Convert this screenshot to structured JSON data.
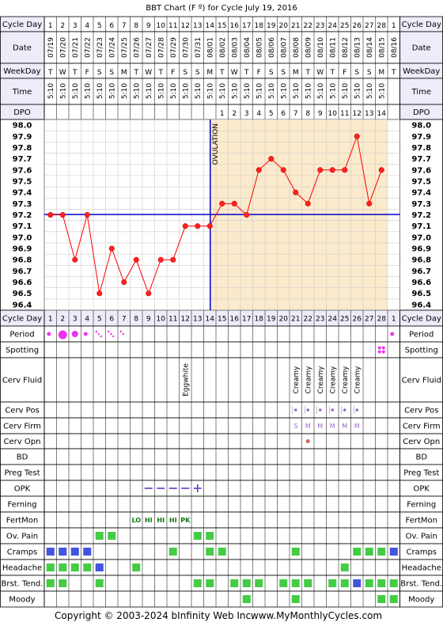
{
  "title": "BBT Chart (F º) for Cycle July 19, 2016",
  "footer": {
    "copyright": "Copyright © 2003-2024 bInfinity Web Inc.",
    "site": "www.MyMonthlyCycles.com"
  },
  "row_labels": {
    "cycle_day": "Cycle Day",
    "date": "Date",
    "weekday": "WeekDay",
    "time": "Time",
    "dpo": "DPO",
    "period": "Period",
    "spotting": "Spotting",
    "cerv_fluid": "Cerv Fluid",
    "cerv_pos": "Cerv Pos",
    "cerv_firm": "Cerv Firm",
    "cerv_opn": "Cerv Opn",
    "bd": "BD",
    "preg_test": "Preg Test",
    "opk": "OPK",
    "ferning": "Ferning",
    "fertmon": "FertMon",
    "ov_pain": "Ov. Pain",
    "cramps": "Cramps",
    "headache": "Headache",
    "brst_tend": "Brst. Tend.",
    "moody": "Moody"
  },
  "cycle_days": [
    "1",
    "2",
    "3",
    "4",
    "5",
    "6",
    "7",
    "8",
    "9",
    "10",
    "11",
    "12",
    "13",
    "14",
    "15",
    "16",
    "17",
    "18",
    "19",
    "20",
    "21",
    "22",
    "23",
    "24",
    "25",
    "26",
    "27",
    "28",
    "1"
  ],
  "dates": [
    "07/19",
    "07/20",
    "07/21",
    "07/22",
    "07/23",
    "07/24",
    "07/25",
    "07/26",
    "07/27",
    "07/28",
    "07/29",
    "07/30",
    "07/31",
    "08/01",
    "08/02",
    "08/03",
    "08/04",
    "08/05",
    "08/06",
    "08/07",
    "08/08",
    "08/09",
    "08/10",
    "08/11",
    "08/12",
    "08/13",
    "08/14",
    "08/15",
    "08/16"
  ],
  "weekdays": [
    "T",
    "W",
    "T",
    "F",
    "S",
    "S",
    "M",
    "T",
    "W",
    "T",
    "F",
    "S",
    "S",
    "M",
    "T",
    "W",
    "T",
    "F",
    "S",
    "S",
    "M",
    "T",
    "W",
    "T",
    "F",
    "S",
    "S",
    "M",
    "T"
  ],
  "times": [
    "5:10",
    "5:10",
    "5:10",
    "5:10",
    "5:10",
    "5:10",
    "5:10",
    "5:10",
    "5:10",
    "5:10",
    "5:10",
    "5:10",
    "5:10",
    "5:10",
    "5:10",
    "5:10",
    "5:10",
    "5:10",
    "5:10",
    "5:10",
    "5:10",
    "5:10",
    "5:10",
    "5:10",
    "5:10",
    "5:10",
    "5:10",
    "5:10",
    ""
  ],
  "dpo": [
    "",
    "",
    "",
    "",
    "",
    "",
    "",
    "",
    "",
    "",
    "",
    "",
    "",
    "",
    "1",
    "2",
    "3",
    "4",
    "5",
    "6",
    "7",
    "8",
    "9",
    "10",
    "11",
    "12",
    "13",
    "14",
    ""
  ],
  "ovulation_label": "OVULATION",
  "chart_data": {
    "type": "line",
    "x": [
      1,
      2,
      3,
      4,
      5,
      6,
      7,
      8,
      9,
      10,
      11,
      12,
      13,
      14,
      15,
      16,
      17,
      18,
      19,
      20,
      21,
      22,
      23,
      24,
      25,
      26,
      27,
      28
    ],
    "values": [
      97.2,
      97.2,
      96.8,
      97.2,
      96.5,
      96.9,
      96.6,
      96.8,
      96.5,
      96.8,
      96.8,
      97.1,
      97.1,
      97.1,
      97.3,
      97.3,
      97.2,
      97.6,
      97.7,
      97.6,
      97.4,
      97.3,
      97.6,
      97.6,
      97.6,
      97.9,
      97.3,
      97.6
    ],
    "y_ticks": [
      "98.0",
      "97.9",
      "97.8",
      "97.7",
      "97.6",
      "97.5",
      "97.4",
      "97.3",
      "97.2",
      "97.1",
      "97.0",
      "96.9",
      "96.8",
      "96.7",
      "96.6",
      "96.5",
      "96.4"
    ],
    "ylim": [
      96.4,
      98.0
    ],
    "coverline": 97.2,
    "ovulation_day": 14,
    "colors": {
      "line": "#ff0000",
      "coverline": "#0000cc",
      "ovulation": "#0000cc",
      "post_ovulation_bg": "#fbeacb",
      "grid": "#cccccc"
    }
  },
  "period": [
    "dot-small",
    "dot-large",
    "dot-medium",
    "dot-small",
    "spot-3",
    "spot-3",
    "spot-2",
    "",
    "",
    "",
    "",
    "",
    "",
    "",
    "",
    "",
    "",
    "",
    "",
    "",
    "",
    "",
    "",
    "",
    "",
    "",
    "",
    "",
    "dot-small"
  ],
  "spotting": [
    "",
    "",
    "",
    "",
    "",
    "",
    "",
    "",
    "",
    "",
    "",
    "",
    "",
    "",
    "",
    "",
    "",
    "",
    "",
    "",
    "",
    "",
    "",
    "",
    "",
    "",
    "",
    "spot-4",
    ""
  ],
  "cerv_fluid": [
    "",
    "",
    "",
    "",
    "",
    "",
    "",
    "",
    "",
    "",
    "",
    "Eggwhite",
    "",
    "",
    "",
    "",
    "",
    "",
    "",
    "",
    "Creamy",
    "Creamy",
    "Creamy",
    "Creamy",
    "Creamy",
    "Creamy",
    "",
    "",
    ""
  ],
  "cerv_pos": [
    "",
    "",
    "",
    "",
    "",
    "",
    "",
    "",
    "",
    "",
    "",
    "",
    "",
    "",
    "",
    "",
    "",
    "",
    "",
    "",
    "•",
    "•",
    "•",
    "•",
    "•",
    "•",
    "",
    "",
    ""
  ],
  "cerv_firm": [
    "",
    "",
    "",
    "",
    "",
    "",
    "",
    "",
    "",
    "",
    "",
    "",
    "",
    "",
    "",
    "",
    "",
    "",
    "",
    "",
    "S",
    "M",
    "M",
    "M",
    "M",
    "M",
    "",
    "",
    ""
  ],
  "cerv_opn": [
    "",
    "",
    "",
    "",
    "",
    "",
    "",
    "",
    "",
    "",
    "",
    "",
    "",
    "",
    "",
    "",
    "",
    "",
    "",
    "",
    "",
    "•",
    "",
    "",
    "",
    "",
    "",
    "",
    ""
  ],
  "opk": [
    "",
    "",
    "",
    "",
    "",
    "",
    "",
    "",
    "–",
    "–",
    "–",
    "–",
    "+",
    "",
    "",
    "",
    "",
    "",
    "",
    "",
    "",
    "",
    "",
    "",
    "",
    "",
    "",
    "",
    ""
  ],
  "fertmon": [
    "",
    "",
    "",
    "",
    "",
    "",
    "",
    "LO",
    "HI",
    "HI",
    "HI",
    "PK",
    "",
    "",
    "",
    "",
    "",
    "",
    "",
    "",
    "",
    "",
    "",
    "",
    "",
    "",
    "",
    "",
    ""
  ],
  "ov_pain": [
    "",
    "",
    "",
    "",
    "g",
    "g",
    "",
    "",
    "",
    "",
    "",
    "",
    "g",
    "g",
    "",
    "",
    "",
    "",
    "",
    "",
    "",
    "",
    "",
    "",
    "",
    "",
    "",
    "",
    ""
  ],
  "cramps": [
    "b",
    "b",
    "b",
    "b",
    "",
    "",
    "",
    "",
    "",
    "",
    "g",
    "",
    "",
    "g",
    "g",
    "",
    "",
    "",
    "",
    "",
    "g",
    "",
    "",
    "",
    "",
    "g",
    "g",
    "g",
    "b"
  ],
  "headache": [
    "g",
    "g",
    "g",
    "g",
    "b",
    "",
    "",
    "g",
    "",
    "",
    "",
    "",
    "",
    "",
    "",
    "",
    "",
    "",
    "",
    "",
    "",
    "",
    "",
    "",
    "g",
    "",
    "",
    "",
    ""
  ],
  "brst_tend": [
    "g",
    "g",
    "",
    "",
    "g",
    "",
    "",
    "",
    "",
    "",
    "",
    "",
    "g",
    "g",
    "",
    "g",
    "g",
    "g",
    "",
    "g",
    "g",
    "g",
    "",
    "g",
    "g",
    "b",
    "g",
    "g",
    "g"
  ],
  "moody": [
    "",
    "",
    "",
    "",
    "",
    "",
    "",
    "",
    "",
    "",
    "",
    "",
    "",
    "",
    "",
    "",
    "g",
    "",
    "",
    "",
    "g",
    "",
    "",
    "",
    "",
    "",
    "",
    "g",
    "g"
  ]
}
